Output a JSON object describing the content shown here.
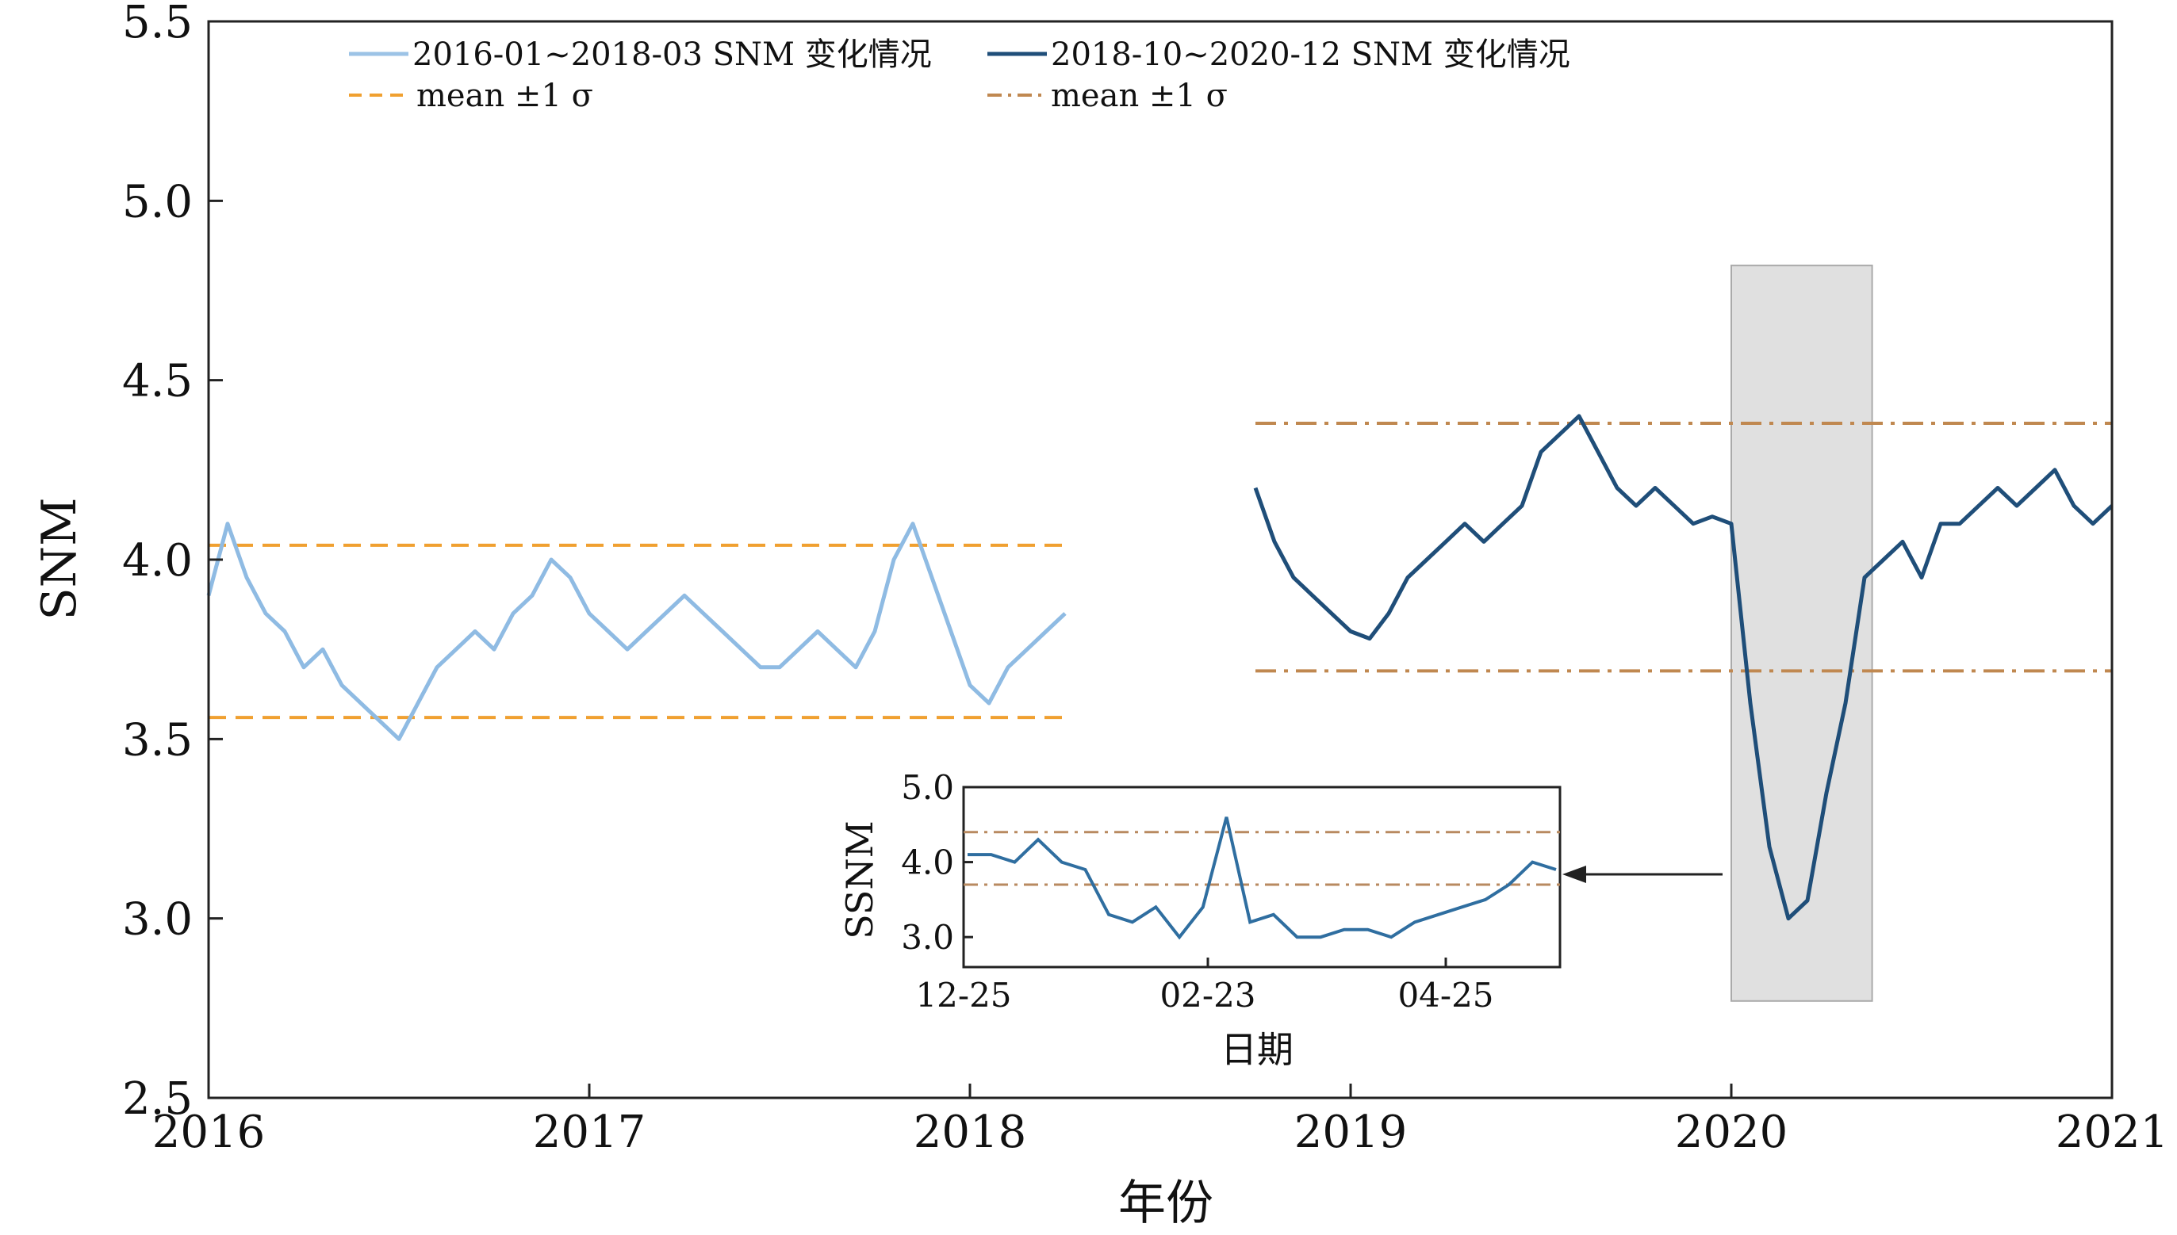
{
  "chart_data": [
    {
      "type": "line",
      "xlabel": "年份",
      "ylabel": "SNM",
      "xlim": [
        2016,
        2021
      ],
      "ylim": [
        2.5,
        5.5
      ],
      "xticks": [
        "2016",
        "2017",
        "2018",
        "2019",
        "2020",
        "2021"
      ],
      "yticks": [
        "2.5",
        "3.0",
        "3.5",
        "4.0",
        "4.5",
        "5.0",
        "5.5"
      ],
      "grid": false,
      "legend_position": "top",
      "legend": [
        {
          "label": "2016-01~2018-03 SNM 变化情况",
          "style": "solid",
          "color": "#9cc3e6"
        },
        {
          "label": "2018-10~2020-12 SNM 变化情况",
          "style": "solid",
          "color": "#1f4e79"
        },
        {
          "label": "mean ±1 σ",
          "style": "dashed",
          "color": "#f0a030"
        },
        {
          "label": "mean ±1 σ",
          "style": "dashdot",
          "color": "#c08850"
        }
      ],
      "series": [
        {
          "name": "2016-01~2018-03 SNM 变化情况",
          "color": "#8fbbe3",
          "x": [
            2016.0,
            2016.05,
            2016.1,
            2016.15,
            2016.2,
            2016.25,
            2016.3,
            2016.35,
            2016.4,
            2016.45,
            2016.5,
            2016.55,
            2016.6,
            2016.65,
            2016.7,
            2016.75,
            2016.8,
            2016.85,
            2016.9,
            2016.95,
            2017.0,
            2017.05,
            2017.1,
            2017.15,
            2017.2,
            2017.25,
            2017.3,
            2017.35,
            2017.4,
            2017.45,
            2017.5,
            2017.55,
            2017.6,
            2017.65,
            2017.7,
            2017.75,
            2017.8,
            2017.85,
            2017.9,
            2017.95,
            2018.0,
            2018.05,
            2018.1,
            2018.15,
            2018.2,
            2018.25
          ],
          "y": [
            3.9,
            4.1,
            3.95,
            3.85,
            3.8,
            3.7,
            3.75,
            3.65,
            3.6,
            3.55,
            3.5,
            3.6,
            3.7,
            3.75,
            3.8,
            3.75,
            3.85,
            3.9,
            4.0,
            3.95,
            3.85,
            3.8,
            3.75,
            3.8,
            3.85,
            3.9,
            3.85,
            3.8,
            3.75,
            3.7,
            3.7,
            3.75,
            3.8,
            3.75,
            3.7,
            3.8,
            4.0,
            4.1,
            3.95,
            3.8,
            3.65,
            3.6,
            3.7,
            3.75,
            3.8,
            3.85
          ]
        },
        {
          "name": "2018-10~2020-12 SNM 变化情况",
          "color": "#1f4e79",
          "x": [
            2018.75,
            2018.8,
            2018.85,
            2018.9,
            2018.95,
            2019.0,
            2019.05,
            2019.1,
            2019.15,
            2019.2,
            2019.25,
            2019.3,
            2019.35,
            2019.4,
            2019.45,
            2019.5,
            2019.55,
            2019.6,
            2019.65,
            2019.7,
            2019.75,
            2019.8,
            2019.85,
            2019.9,
            2019.95,
            2020.0,
            2020.05,
            2020.1,
            2020.15,
            2020.2,
            2020.25,
            2020.3,
            2020.35,
            2020.4,
            2020.45,
            2020.5,
            2020.55,
            2020.6,
            2020.65,
            2020.7,
            2020.75,
            2020.8,
            2020.85,
            2020.9,
            2020.95,
            2021.0
          ],
          "y": [
            4.2,
            4.05,
            3.95,
            3.9,
            3.85,
            3.8,
            3.78,
            3.85,
            3.95,
            4.0,
            4.05,
            4.1,
            4.05,
            4.1,
            4.15,
            4.3,
            4.35,
            4.4,
            4.3,
            4.2,
            4.15,
            4.2,
            4.15,
            4.1,
            4.12,
            4.1,
            3.6,
            3.2,
            3.0,
            3.05,
            3.35,
            3.6,
            3.95,
            4.0,
            4.05,
            3.95,
            4.1,
            4.1,
            4.15,
            4.2,
            4.15,
            4.2,
            4.25,
            4.15,
            4.1,
            4.15
          ]
        }
      ],
      "reference_lines": [
        {
          "label": "mean ±1 σ",
          "segment": "2016-01~2018-03",
          "x_range": [
            2016.0,
            2018.25
          ],
          "y": [
            3.56,
            4.04
          ],
          "style": "dashed",
          "color": "#f0a030"
        },
        {
          "label": "mean ±1 σ",
          "segment": "2018-10~2020-12",
          "x_range": [
            2018.75,
            2021.0
          ],
          "y": [
            3.69,
            4.38
          ],
          "style": "dashdot",
          "color": "#c08850"
        }
      ],
      "highlight_region": {
        "x_range": [
          2020.0,
          2020.37
        ],
        "y_range": [
          2.77,
          4.82
        ],
        "color": "#e0e0e0"
      }
    },
    {
      "type": "line",
      "xlabel": "日期",
      "ylabel": "SSNM",
      "xticks": [
        "12-25",
        "02-23",
        "04-25"
      ],
      "yticks": [
        "3.0",
        "4.0",
        "5.0"
      ],
      "ylim": [
        2.6,
        5.0
      ],
      "series": [
        {
          "color": "#2f6ea0",
          "x": [
            0,
            5,
            10,
            15,
            20,
            25,
            30,
            35,
            40,
            45,
            50,
            55,
            60,
            65,
            70,
            75,
            80,
            85,
            90,
            95,
            100,
            105,
            110,
            115,
            120,
            125
          ],
          "y": [
            4.1,
            4.1,
            4.0,
            4.3,
            4.0,
            3.9,
            3.3,
            3.2,
            3.4,
            3.0,
            3.4,
            4.6,
            3.2,
            3.3,
            3.0,
            3.0,
            3.1,
            3.1,
            3.0,
            3.2,
            3.3,
            3.4,
            3.5,
            3.7,
            4.0,
            3.9
          ]
        }
      ],
      "reference_lines": [
        {
          "y": [
            3.7,
            4.4
          ],
          "style": "dashdot",
          "color": "#b88a60"
        }
      ]
    }
  ]
}
